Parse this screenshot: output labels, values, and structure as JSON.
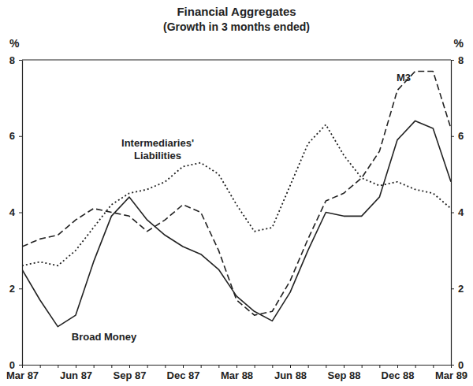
{
  "chart_data": {
    "type": "line",
    "title": "Financial Aggregates",
    "subtitle": "(Growth in 3 months ended)",
    "ylabel": "%",
    "categories": [
      "Mar 87",
      null,
      null,
      "Jun 87",
      null,
      null,
      "Sep 87",
      null,
      null,
      "Dec 87",
      null,
      null,
      "Mar 88",
      null,
      null,
      "Jun 88",
      null,
      null,
      "Sep 88",
      null,
      null,
      "Dec 88",
      null,
      null,
      "Mar 89"
    ],
    "ylim": [
      0,
      8
    ],
    "yticks": [
      0,
      2,
      4,
      6,
      8
    ],
    "grid": false,
    "series": [
      {
        "name": "Broad Money",
        "color": "#222222",
        "line_style": "solid",
        "values": [
          2.5,
          1.7,
          1.0,
          1.3,
          2.7,
          3.9,
          4.4,
          3.8,
          3.4,
          3.1,
          2.9,
          2.5,
          1.8,
          1.4,
          1.15,
          1.9,
          3.0,
          4.0,
          3.9,
          3.9,
          4.4,
          5.9,
          6.4,
          6.2,
          4.8
        ]
      },
      {
        "name": "M3",
        "color": "#222222",
        "line_style": "dashed",
        "values": [
          3.1,
          3.3,
          3.4,
          3.8,
          4.1,
          4.0,
          3.9,
          3.5,
          3.8,
          4.2,
          4.0,
          3.0,
          1.7,
          1.3,
          1.4,
          2.2,
          3.3,
          4.3,
          4.5,
          4.9,
          5.6,
          7.2,
          7.7,
          7.7,
          6.2
        ]
      },
      {
        "name": "Intermediaries' Liabilities",
        "color": "#222222",
        "line_style": "dotted",
        "values": [
          2.6,
          2.7,
          2.6,
          3.0,
          3.6,
          4.2,
          4.5,
          4.6,
          4.8,
          5.2,
          5.3,
          5.0,
          4.2,
          3.5,
          3.6,
          4.7,
          5.8,
          6.3,
          5.5,
          4.9,
          4.7,
          4.8,
          4.6,
          4.5,
          4.1
        ]
      }
    ]
  }
}
